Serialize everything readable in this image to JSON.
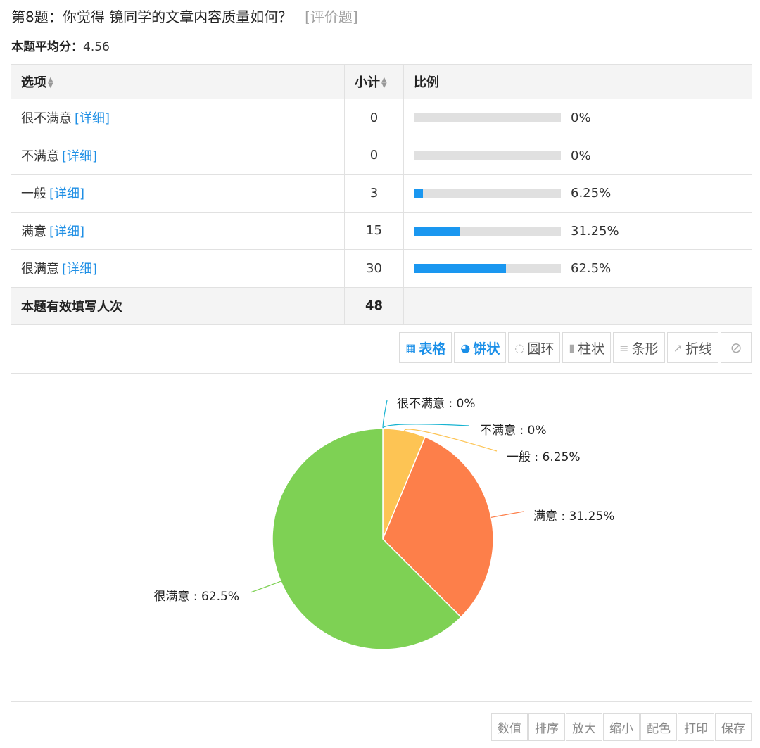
{
  "question": {
    "title": "第8题：你觉得 镜同学的文章内容质量如何？",
    "type": "[评价题]"
  },
  "average": {
    "label": "本题平均分：",
    "value": "4.56"
  },
  "table": {
    "headers": {
      "option": "选项",
      "count": "小计",
      "ratio": "比例"
    },
    "detail_label": "[详细]",
    "rows": [
      {
        "option": "很不满意",
        "count": "0",
        "pct": "0%",
        "fraction": 0
      },
      {
        "option": "不满意",
        "count": "0",
        "pct": "0%",
        "fraction": 0
      },
      {
        "option": "一般",
        "count": "3",
        "pct": "6.25%",
        "fraction": 0.0625
      },
      {
        "option": "满意",
        "count": "15",
        "pct": "31.25%",
        "fraction": 0.3125
      },
      {
        "option": "很满意",
        "count": "30",
        "pct": "62.5%",
        "fraction": 0.625
      }
    ],
    "footer": {
      "label": "本题有效填写人次",
      "total": "48"
    }
  },
  "chart_tabs": [
    {
      "label": "表格",
      "icon": "table-icon",
      "active": true
    },
    {
      "label": "饼状",
      "icon": "pie-icon",
      "active": true
    },
    {
      "label": "圆环",
      "icon": "donut-icon",
      "active": false
    },
    {
      "label": "柱状",
      "icon": "bar-chart-icon",
      "active": false
    },
    {
      "label": "条形",
      "icon": "horizontal-bar-icon",
      "active": false
    },
    {
      "label": "折线",
      "icon": "line-chart-icon",
      "active": false
    }
  ],
  "chart_data": {
    "type": "pie",
    "categories": [
      "很不满意",
      "不满意",
      "一般",
      "满意",
      "很满意"
    ],
    "values": [
      0,
      0,
      6.25,
      31.25,
      62.5
    ],
    "labels": [
      "很不满意 : 0%",
      "不满意 : 0%",
      "一般 : 6.25%",
      "满意 : 31.25%",
      "很满意 : 62.5%"
    ],
    "colors": [
      "#17b3d1",
      "#17b3d1",
      "#fdc454",
      "#fd7f4a",
      "#7ed154"
    ]
  },
  "tools": [
    "数值",
    "排序",
    "放大",
    "缩小",
    "配色",
    "打印",
    "保存"
  ]
}
